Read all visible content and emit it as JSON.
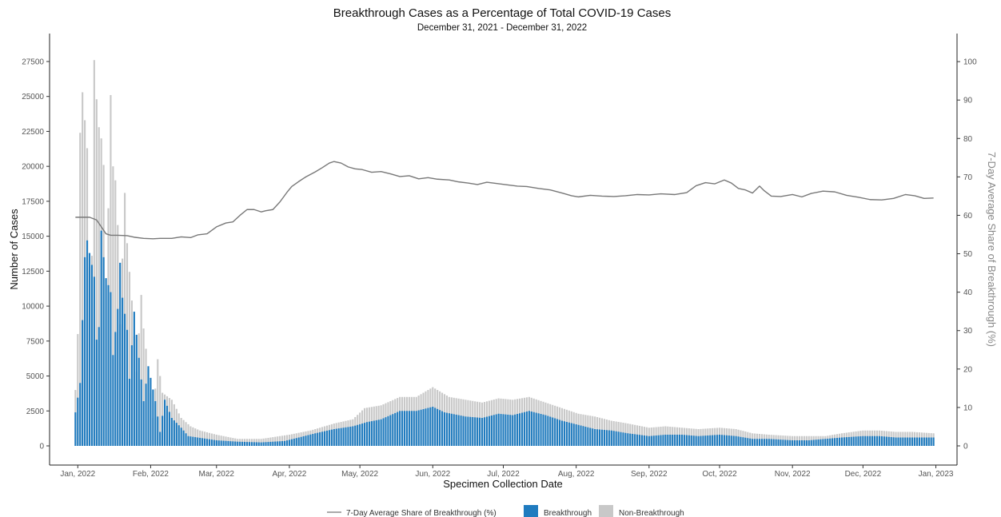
{
  "chart_data": {
    "type": "bar",
    "title": "Breakthrough Cases as a Percentage of Total COVID-19 Cases",
    "subtitle": "December 31, 2021 - December 31, 2022",
    "xlabel": "Specimen Collection Date",
    "ylabel": "Number of Cases",
    "y2label": "7-Day Average Share of Breakthrough (%)",
    "ylim": [
      0,
      29500
    ],
    "y2lim": [
      0,
      107.3
    ],
    "x_start": "2021-12-31",
    "x_end": "2022-12-31",
    "xlim": [
      "2021-12-20",
      "2023-01-10"
    ],
    "x_ticks": [
      {
        "date": "2022-01-01",
        "label": "Jan, 2022"
      },
      {
        "date": "2022-02-01",
        "label": "Feb, 2022"
      },
      {
        "date": "2022-03-01",
        "label": "Mar, 2022"
      },
      {
        "date": "2022-04-01",
        "label": "Apr, 2022"
      },
      {
        "date": "2022-05-01",
        "label": "May, 2022"
      },
      {
        "date": "2022-06-01",
        "label": "Jun, 2022"
      },
      {
        "date": "2022-07-01",
        "label": "Jul, 2022"
      },
      {
        "date": "2022-08-01",
        "label": "Aug, 2022"
      },
      {
        "date": "2022-09-01",
        "label": "Sep, 2022"
      },
      {
        "date": "2022-10-01",
        "label": "Oct, 2022"
      },
      {
        "date": "2022-11-01",
        "label": "Nov, 2022"
      },
      {
        "date": "2022-12-01",
        "label": "Dec, 2022"
      },
      {
        "date": "2023-01-01",
        "label": "Jan, 2023"
      }
    ],
    "y_ticks": [
      0,
      2500,
      5000,
      7500,
      10000,
      12500,
      15000,
      17500,
      20000,
      22500,
      25000,
      27500
    ],
    "y2_ticks": [
      0,
      10,
      20,
      30,
      40,
      50,
      60,
      70,
      80,
      90,
      100
    ],
    "series": [
      {
        "name": "Breakthrough",
        "type": "bar",
        "color": "#1f7bbf",
        "keypoints": [
          [
            "2021-12-31",
            2400
          ],
          [
            "2022-01-02",
            4500
          ],
          [
            "2022-01-04",
            13500
          ],
          [
            "2022-01-05",
            14700
          ],
          [
            "2022-01-06",
            13800
          ],
          [
            "2022-01-08",
            12100
          ],
          [
            "2022-01-09",
            7600
          ],
          [
            "2022-01-10",
            8500
          ],
          [
            "2022-01-11",
            15400
          ],
          [
            "2022-01-12",
            13500
          ],
          [
            "2022-01-13",
            12000
          ],
          [
            "2022-01-15",
            11000
          ],
          [
            "2022-01-16",
            6500
          ],
          [
            "2022-01-18",
            9800
          ],
          [
            "2022-01-19",
            13100
          ],
          [
            "2022-01-20",
            10600
          ],
          [
            "2022-01-22",
            8300
          ],
          [
            "2022-01-23",
            4800
          ],
          [
            "2022-01-25",
            9600
          ],
          [
            "2022-01-27",
            6300
          ],
          [
            "2022-01-29",
            3200
          ],
          [
            "2022-01-31",
            5700
          ],
          [
            "2022-02-03",
            3200
          ],
          [
            "2022-02-05",
            1000
          ],
          [
            "2022-02-07",
            3300
          ],
          [
            "2022-02-10",
            2000
          ],
          [
            "2022-02-14",
            1300
          ],
          [
            "2022-02-17",
            700
          ],
          [
            "2022-02-21",
            600
          ],
          [
            "2022-03-01",
            400
          ],
          [
            "2022-03-10",
            300
          ],
          [
            "2022-03-20",
            250
          ],
          [
            "2022-03-30",
            350
          ],
          [
            "2022-04-05",
            600
          ],
          [
            "2022-04-12",
            900
          ],
          [
            "2022-04-20",
            1200
          ],
          [
            "2022-04-28",
            1400
          ],
          [
            "2022-05-04",
            1700
          ],
          [
            "2022-05-10",
            1900
          ],
          [
            "2022-05-18",
            2500
          ],
          [
            "2022-05-25",
            2500
          ],
          [
            "2022-06-01",
            2800
          ],
          [
            "2022-06-06",
            2400
          ],
          [
            "2022-06-15",
            2100
          ],
          [
            "2022-06-22",
            2000
          ],
          [
            "2022-06-29",
            2300
          ],
          [
            "2022-07-05",
            2200
          ],
          [
            "2022-07-12",
            2500
          ],
          [
            "2022-07-19",
            2200
          ],
          [
            "2022-07-26",
            1800
          ],
          [
            "2022-08-02",
            1500
          ],
          [
            "2022-08-09",
            1200
          ],
          [
            "2022-08-16",
            1100
          ],
          [
            "2022-08-23",
            900
          ],
          [
            "2022-09-01",
            700
          ],
          [
            "2022-09-08",
            800
          ],
          [
            "2022-09-15",
            800
          ],
          [
            "2022-09-22",
            700
          ],
          [
            "2022-10-01",
            800
          ],
          [
            "2022-10-08",
            700
          ],
          [
            "2022-10-15",
            500
          ],
          [
            "2022-10-22",
            500
          ],
          [
            "2022-11-01",
            400
          ],
          [
            "2022-11-08",
            400
          ],
          [
            "2022-11-15",
            500
          ],
          [
            "2022-11-22",
            600
          ],
          [
            "2022-12-01",
            700
          ],
          [
            "2022-12-08",
            700
          ],
          [
            "2022-12-15",
            600
          ],
          [
            "2022-12-22",
            600
          ],
          [
            "2022-12-31",
            600
          ]
        ]
      },
      {
        "name": "Non-Breakthrough",
        "type": "bar",
        "color": "#c8c8c8",
        "keypoints": [
          [
            "2021-12-31",
            4000
          ],
          [
            "2022-01-01",
            8000
          ],
          [
            "2022-01-02",
            22400
          ],
          [
            "2022-01-03",
            25300
          ],
          [
            "2022-01-04",
            23300
          ],
          [
            "2022-01-05",
            21300
          ],
          [
            "2022-01-06",
            12800
          ],
          [
            "2022-01-07",
            13600
          ],
          [
            "2022-01-08",
            27600
          ],
          [
            "2022-01-09",
            24800
          ],
          [
            "2022-01-10",
            22800
          ],
          [
            "2022-01-11",
            22000
          ],
          [
            "2022-01-12",
            20100
          ],
          [
            "2022-01-13",
            11500
          ],
          [
            "2022-01-14",
            17000
          ],
          [
            "2022-01-15",
            25100
          ],
          [
            "2022-01-16",
            20000
          ],
          [
            "2022-01-17",
            19000
          ],
          [
            "2022-01-18",
            15800
          ],
          [
            "2022-01-19",
            8700
          ],
          [
            "2022-01-21",
            18100
          ],
          [
            "2022-01-22",
            14500
          ],
          [
            "2022-01-24",
            10400
          ],
          [
            "2022-01-26",
            5300
          ],
          [
            "2022-01-28",
            10800
          ],
          [
            "2022-01-29",
            8400
          ],
          [
            "2022-01-31",
            5500
          ],
          [
            "2022-02-02",
            2000
          ],
          [
            "2022-02-04",
            6200
          ],
          [
            "2022-02-06",
            3800
          ],
          [
            "2022-02-10",
            3300
          ],
          [
            "2022-02-14",
            2000
          ],
          [
            "2022-02-18",
            1400
          ],
          [
            "2022-02-22",
            1100
          ],
          [
            "2022-03-01",
            800
          ],
          [
            "2022-03-10",
            500
          ],
          [
            "2022-03-20",
            500
          ],
          [
            "2022-04-01",
            800
          ],
          [
            "2022-04-10",
            1100
          ],
          [
            "2022-04-20",
            1600
          ],
          [
            "2022-04-28",
            1900
          ],
          [
            "2022-05-03",
            2700
          ],
          [
            "2022-05-10",
            2900
          ],
          [
            "2022-05-18",
            3500
          ],
          [
            "2022-05-25",
            3500
          ],
          [
            "2022-06-01",
            4200
          ],
          [
            "2022-06-08",
            3500
          ],
          [
            "2022-06-15",
            3300
          ],
          [
            "2022-06-22",
            3100
          ],
          [
            "2022-06-29",
            3400
          ],
          [
            "2022-07-05",
            3300
          ],
          [
            "2022-07-12",
            3500
          ],
          [
            "2022-07-19",
            3100
          ],
          [
            "2022-07-26",
            2700
          ],
          [
            "2022-08-02",
            2300
          ],
          [
            "2022-08-09",
            2100
          ],
          [
            "2022-08-16",
            1800
          ],
          [
            "2022-08-23",
            1600
          ],
          [
            "2022-09-01",
            1300
          ],
          [
            "2022-09-08",
            1400
          ],
          [
            "2022-09-15",
            1300
          ],
          [
            "2022-09-22",
            1200
          ],
          [
            "2022-10-01",
            1300
          ],
          [
            "2022-10-08",
            1200
          ],
          [
            "2022-10-15",
            900
          ],
          [
            "2022-10-22",
            800
          ],
          [
            "2022-11-01",
            700
          ],
          [
            "2022-11-08",
            700
          ],
          [
            "2022-11-15",
            700
          ],
          [
            "2022-11-22",
            900
          ],
          [
            "2022-12-01",
            1100
          ],
          [
            "2022-12-08",
            1100
          ],
          [
            "2022-12-15",
            1000
          ],
          [
            "2022-12-22",
            1000
          ],
          [
            "2022-12-31",
            900
          ]
        ]
      },
      {
        "name": "7-Day Average Share of Breakthrough (%)",
        "type": "line",
        "axis": "right",
        "color": "#777777",
        "points": [
          [
            "2021-12-31",
            59.5
          ],
          [
            "2022-01-02",
            59.5
          ],
          [
            "2022-01-06",
            59.5
          ],
          [
            "2022-01-09",
            58.8
          ],
          [
            "2022-01-11",
            57.0
          ],
          [
            "2022-01-13",
            55.2
          ],
          [
            "2022-01-15",
            54.8
          ],
          [
            "2022-01-18",
            54.8
          ],
          [
            "2022-01-22",
            54.7
          ],
          [
            "2022-01-25",
            54.3
          ],
          [
            "2022-01-29",
            54.0
          ],
          [
            "2022-02-02",
            53.9
          ],
          [
            "2022-02-05",
            54.0
          ],
          [
            "2022-02-10",
            54.0
          ],
          [
            "2022-02-14",
            54.4
          ],
          [
            "2022-02-18",
            54.2
          ],
          [
            "2022-02-21",
            54.9
          ],
          [
            "2022-02-25",
            55.2
          ],
          [
            "2022-03-01",
            57.0
          ],
          [
            "2022-03-05",
            58.0
          ],
          [
            "2022-03-08",
            58.3
          ],
          [
            "2022-03-11",
            60.0
          ],
          [
            "2022-03-14",
            61.5
          ],
          [
            "2022-03-17",
            61.5
          ],
          [
            "2022-03-20",
            60.9
          ],
          [
            "2022-03-22",
            61.2
          ],
          [
            "2022-03-25",
            61.5
          ],
          [
            "2022-03-28",
            63.5
          ],
          [
            "2022-03-31",
            66.0
          ],
          [
            "2022-04-02",
            67.5
          ],
          [
            "2022-04-05",
            68.8
          ],
          [
            "2022-04-08",
            70.0
          ],
          [
            "2022-04-12",
            71.3
          ],
          [
            "2022-04-15",
            72.4
          ],
          [
            "2022-04-18",
            73.6
          ],
          [
            "2022-04-20",
            74.0
          ],
          [
            "2022-04-23",
            73.6
          ],
          [
            "2022-04-26",
            72.6
          ],
          [
            "2022-04-29",
            72.1
          ],
          [
            "2022-05-02",
            71.9
          ],
          [
            "2022-05-06",
            71.2
          ],
          [
            "2022-05-10",
            71.4
          ],
          [
            "2022-05-14",
            70.8
          ],
          [
            "2022-05-18",
            70.1
          ],
          [
            "2022-05-22",
            70.3
          ],
          [
            "2022-05-26",
            69.5
          ],
          [
            "2022-05-30",
            69.8
          ],
          [
            "2022-06-03",
            69.4
          ],
          [
            "2022-06-08",
            69.2
          ],
          [
            "2022-06-12",
            68.7
          ],
          [
            "2022-06-16",
            68.4
          ],
          [
            "2022-06-20",
            68.0
          ],
          [
            "2022-06-24",
            68.6
          ],
          [
            "2022-06-28",
            68.3
          ],
          [
            "2022-07-03",
            67.9
          ],
          [
            "2022-07-07",
            67.6
          ],
          [
            "2022-07-11",
            67.5
          ],
          [
            "2022-07-16",
            67.0
          ],
          [
            "2022-07-21",
            66.6
          ],
          [
            "2022-07-26",
            65.8
          ],
          [
            "2022-07-30",
            65.1
          ],
          [
            "2022-08-02",
            64.8
          ],
          [
            "2022-08-07",
            65.2
          ],
          [
            "2022-08-12",
            65.0
          ],
          [
            "2022-08-17",
            64.9
          ],
          [
            "2022-08-22",
            65.1
          ],
          [
            "2022-08-27",
            65.4
          ],
          [
            "2022-09-01",
            65.3
          ],
          [
            "2022-09-06",
            65.6
          ],
          [
            "2022-09-12",
            65.4
          ],
          [
            "2022-09-17",
            65.9
          ],
          [
            "2022-09-21",
            67.7
          ],
          [
            "2022-09-25",
            68.5
          ],
          [
            "2022-09-29",
            68.2
          ],
          [
            "2022-10-03",
            69.2
          ],
          [
            "2022-10-06",
            68.4
          ],
          [
            "2022-10-09",
            67.0
          ],
          [
            "2022-10-12",
            66.6
          ],
          [
            "2022-10-15",
            65.8
          ],
          [
            "2022-10-18",
            67.6
          ],
          [
            "2022-10-20",
            66.4
          ],
          [
            "2022-10-23",
            65.0
          ],
          [
            "2022-10-27",
            64.9
          ],
          [
            "2022-11-01",
            65.4
          ],
          [
            "2022-11-05",
            64.8
          ],
          [
            "2022-11-09",
            65.7
          ],
          [
            "2022-11-14",
            66.3
          ],
          [
            "2022-11-19",
            66.1
          ],
          [
            "2022-11-24",
            65.2
          ],
          [
            "2022-11-29",
            64.7
          ],
          [
            "2022-12-04",
            64.1
          ],
          [
            "2022-12-09",
            64.0
          ],
          [
            "2022-12-14",
            64.4
          ],
          [
            "2022-12-19",
            65.4
          ],
          [
            "2022-12-23",
            65.1
          ],
          [
            "2022-12-27",
            64.4
          ],
          [
            "2022-12-31",
            64.5
          ]
        ]
      }
    ],
    "legend": {
      "position": "bottom",
      "items": [
        {
          "label": "7-Day Average Share of Breakthrough (%)",
          "kind": "line",
          "color": "#777777"
        },
        {
          "label": "Breakthrough",
          "kind": "box",
          "color": "#1f7bbf"
        },
        {
          "label": "Non-Breakthrough",
          "kind": "box",
          "color": "#c8c8c8"
        }
      ]
    }
  }
}
